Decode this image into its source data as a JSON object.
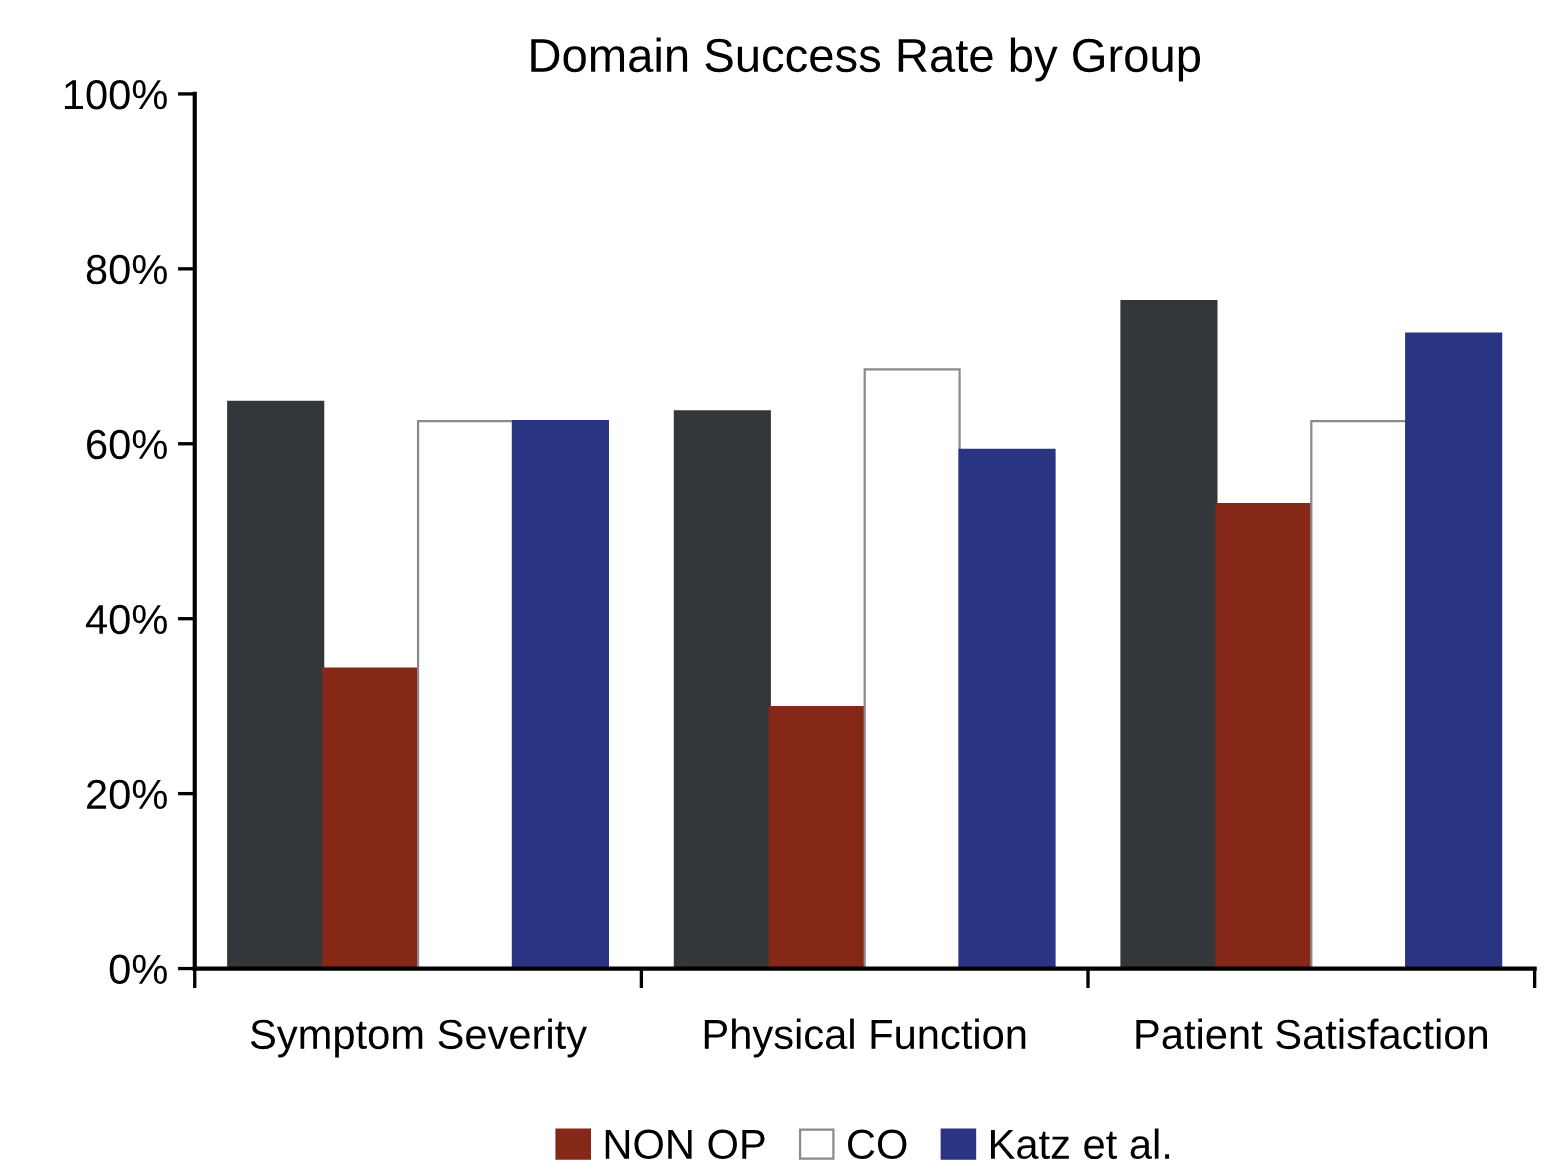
{
  "chart_data": {
    "type": "bar",
    "title": "Domain Success Rate by Group",
    "categories": [
      "Symptom Severity",
      "Physical Function",
      "Patient Satisfaction"
    ],
    "series": [
      {
        "color": "#333739",
        "values": [
          64.8,
          63.7,
          76.3
        ]
      },
      {
        "name": "NON OP",
        "color": "#852818",
        "values": [
          34.3,
          29.9,
          53.1
        ]
      },
      {
        "name": "CO",
        "color": "#ffffff",
        "values": [
          62.6,
          68.5,
          62.6
        ]
      },
      {
        "name": "Katz et al.",
        "color": "#293583",
        "values": [
          62.6,
          59.3,
          72.6
        ]
      }
    ],
    "ylim": [
      0,
      100
    ],
    "yticks": [
      {
        "value": 0,
        "label": "0%"
      },
      {
        "value": 20,
        "label": "20%"
      },
      {
        "value": 40,
        "label": "40%"
      },
      {
        "value": 60,
        "label": "60%"
      },
      {
        "value": 80,
        "label": "80%"
      },
      {
        "value": 100,
        "label": "100%"
      }
    ],
    "grid": false,
    "legend": "bottom"
  }
}
